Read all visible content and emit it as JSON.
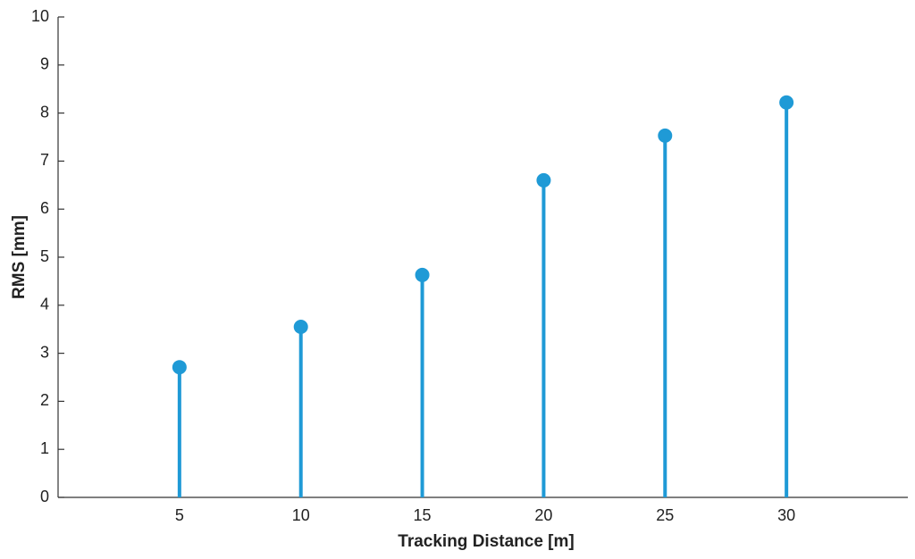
{
  "chart_data": {
    "type": "stem",
    "x_label": "Tracking Distance [m]",
    "y_label": "RMS [mm]",
    "x": [
      5,
      10,
      15,
      20,
      25,
      30
    ],
    "values": [
      2.71,
      3.55,
      4.63,
      6.6,
      7.53,
      8.22
    ],
    "color": "#1f9ad6",
    "xlim": [
      0,
      35
    ],
    "xticks": [
      5,
      10,
      15,
      20,
      25,
      30
    ],
    "ylim": [
      0,
      10
    ],
    "yticks": [
      0,
      1,
      2,
      3,
      4,
      5,
      6,
      7,
      8,
      9,
      10
    ],
    "grid": false
  }
}
